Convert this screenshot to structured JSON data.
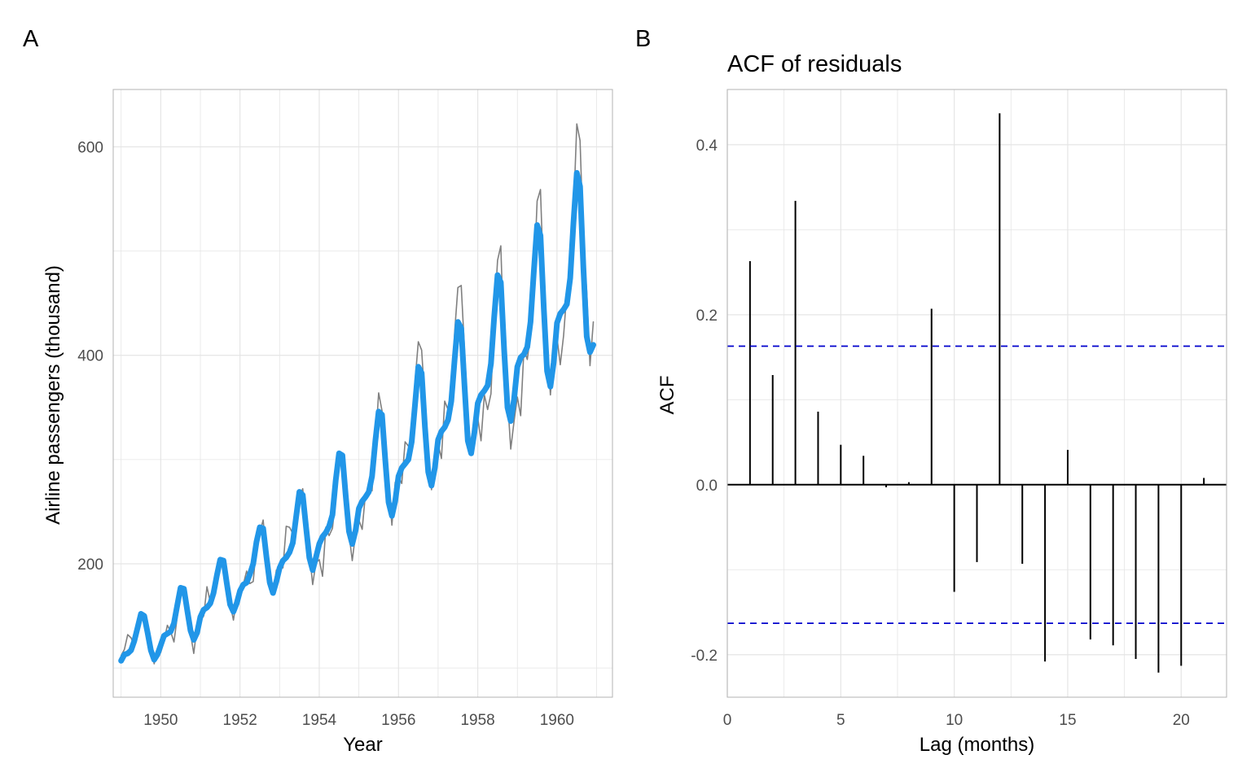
{
  "chart_data": [
    {
      "type": "line",
      "panel_label": "A",
      "title": "",
      "xlabel": "Year",
      "ylabel": "Airline passengers (thousand)",
      "xlim": [
        1948.8,
        1961.4
      ],
      "ylim": [
        72,
        655
      ],
      "xticks": [
        1950,
        1952,
        1954,
        1956,
        1958,
        1960
      ],
      "yticks": [
        200,
        400,
        600
      ],
      "grid": true,
      "colors": {
        "observed": "#808080",
        "fitted": "#2196e8",
        "grid": "#e5e5e5",
        "border": "#b3b3b3"
      },
      "series": [
        {
          "role": "observed",
          "x_start": 1949,
          "x_step": 0.08333,
          "values": [
            112,
            118,
            132,
            129,
            121,
            135,
            148,
            148,
            136,
            119,
            104,
            118,
            115,
            126,
            141,
            135,
            125,
            149,
            170,
            170,
            158,
            133,
            114,
            140,
            145,
            150,
            178,
            163,
            172,
            178,
            199,
            199,
            184,
            162,
            146,
            166,
            171,
            180,
            193,
            181,
            183,
            218,
            230,
            242,
            209,
            191,
            172,
            194,
            196,
            196,
            236,
            235,
            229,
            243,
            264,
            272,
            237,
            211,
            180,
            201,
            204,
            188,
            235,
            227,
            234,
            264,
            302,
            293,
            259,
            229,
            203,
            229,
            242,
            233,
            267,
            269,
            270,
            315,
            364,
            347,
            312,
            274,
            237,
            278,
            284,
            277,
            317,
            313,
            318,
            374,
            413,
            405,
            355,
            306,
            271,
            306,
            315,
            301,
            356,
            348,
            355,
            422,
            465,
            467,
            404,
            347,
            305,
            336,
            340,
            318,
            362,
            348,
            363,
            435,
            491,
            505,
            404,
            359,
            310,
            337,
            360,
            342,
            406,
            396,
            420,
            472,
            548,
            559,
            463,
            407,
            362,
            405,
            417,
            391,
            419,
            461,
            472,
            535,
            622,
            606,
            508,
            461,
            390,
            432
          ]
        },
        {
          "role": "fitted",
          "x_start": 1949,
          "x_step": 0.08333,
          "values": [
            107,
            113,
            114,
            117,
            126,
            139,
            152,
            150,
            134,
            117,
            108,
            113,
            122,
            131,
            133,
            135,
            143,
            160,
            177,
            176,
            156,
            136,
            127,
            134,
            149,
            156,
            158,
            162,
            172,
            189,
            204,
            203,
            181,
            161,
            154,
            162,
            174,
            180,
            182,
            190,
            200,
            221,
            235,
            234,
            207,
            182,
            172,
            183,
            196,
            203,
            206,
            211,
            220,
            245,
            269,
            266,
            235,
            206,
            194,
            206,
            219,
            226,
            230,
            236,
            247,
            280,
            306,
            304,
            266,
            231,
            219,
            232,
            253,
            260,
            264,
            269,
            284,
            318,
            346,
            343,
            299,
            259,
            246,
            260,
            284,
            292,
            296,
            300,
            317,
            352,
            389,
            383,
            332,
            288,
            275,
            292,
            319,
            327,
            331,
            338,
            356,
            396,
            432,
            426,
            370,
            318,
            306,
            326,
            354,
            362,
            366,
            371,
            392,
            437,
            477,
            470,
            405,
            350,
            337,
            358,
            389,
            398,
            401,
            408,
            432,
            481,
            525,
            515,
            445,
            385,
            370,
            393,
            431,
            440,
            444,
            449,
            474,
            527,
            575,
            562,
            484,
            418,
            403,
            410
          ]
        }
      ]
    },
    {
      "type": "bar",
      "panel_label": "B",
      "title": "ACF of residuals",
      "xlabel": "Lag (months)",
      "ylabel": "ACF",
      "xlim": [
        0,
        22
      ],
      "ylim": [
        -0.25,
        0.465
      ],
      "xticks": [
        0,
        5,
        10,
        15,
        20
      ],
      "yticks": [
        -0.2,
        0.0,
        0.2,
        0.4
      ],
      "ytick_labels": [
        "-0.2",
        "0.0",
        "0.2",
        "0.4"
      ],
      "grid": true,
      "confidence_bound": 0.163,
      "colors": {
        "bars": "#000000",
        "bounds": "#0000cc",
        "grid": "#e5e5e5",
        "border": "#b3b3b3"
      },
      "lags": [
        1,
        2,
        3,
        4,
        5,
        6,
        7,
        8,
        9,
        10,
        11,
        12,
        13,
        14,
        15,
        16,
        17,
        18,
        19,
        20,
        21
      ],
      "values": [
        0.263,
        0.129,
        0.334,
        0.086,
        0.047,
        0.034,
        -0.003,
        0.003,
        0.207,
        -0.126,
        -0.091,
        0.437,
        -0.093,
        -0.208,
        0.041,
        -0.182,
        -0.189,
        -0.205,
        -0.221,
        -0.213,
        0.008
      ]
    }
  ]
}
